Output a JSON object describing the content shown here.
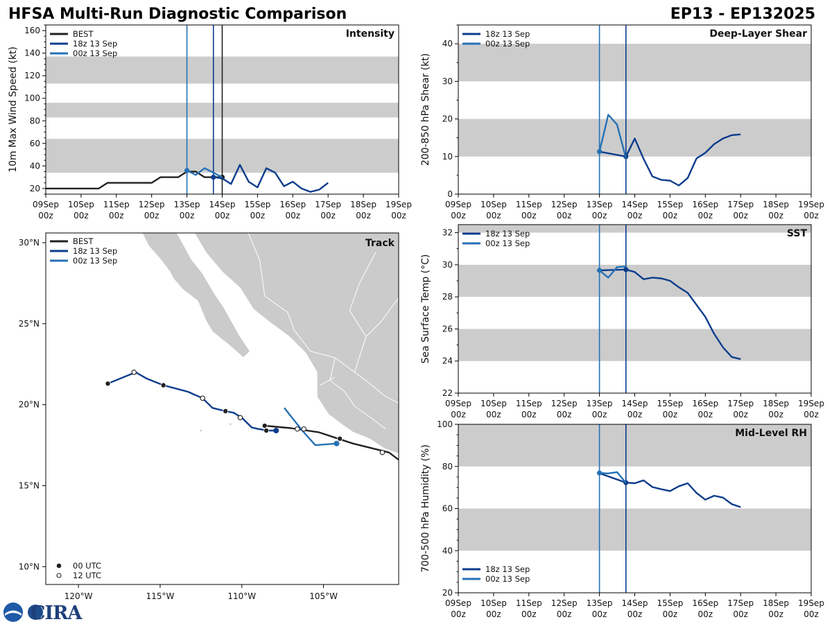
{
  "header": {
    "left_title": "HFSA Multi-Run Diagnostic Comparison",
    "right_title": "EP13 - EP132025"
  },
  "colors": {
    "best": "#222222",
    "run18z": "#0b3c8c",
    "run00z": "#2471b5",
    "band": "#cccccc",
    "land": "#cbcbcb"
  },
  "logo": {
    "text": "CIRA"
  },
  "time_axis": {
    "ticks": [
      0,
      24,
      48,
      72,
      96,
      120,
      144,
      168,
      192,
      216,
      240
    ],
    "day_labels": [
      "09Sep",
      "10Sep",
      "11Sep",
      "12Sep",
      "13Sep",
      "14Sep",
      "15Sep",
      "16Sep",
      "17Sep",
      "18Sep",
      "19Sep"
    ],
    "hour_label": "00z",
    "units": "hours since 09Sep 00z"
  },
  "chart_data": [
    {
      "id": "intensity",
      "type": "line",
      "title": "Intensity",
      "ylabel": "10m Max Wind Speed (kt)",
      "ylim": [
        15,
        165
      ],
      "xlim": [
        0,
        240
      ],
      "yticks": [
        20,
        40,
        60,
        80,
        100,
        120,
        140,
        160
      ],
      "bands": [
        [
          34,
          64
        ],
        [
          83,
          96
        ],
        [
          113,
          137
        ]
      ],
      "vlines": [
        {
          "x": 96,
          "series": "run00z"
        },
        {
          "x": 114,
          "series": "run18z"
        },
        {
          "x": 120,
          "series": "best"
        }
      ],
      "legend": [
        "BEST",
        "18z 13 Sep",
        "00z 13 Sep"
      ],
      "legend_position": "top-left",
      "series": [
        {
          "name": "BEST",
          "key": "best",
          "x": [
            0,
            6,
            12,
            18,
            24,
            30,
            36,
            42,
            48,
            54,
            60,
            66,
            72,
            78,
            84,
            90,
            96,
            102,
            108,
            114,
            120
          ],
          "y": [
            20,
            20,
            20,
            20,
            20,
            20,
            20,
            25,
            25,
            25,
            25,
            25,
            25,
            30,
            30,
            30,
            35,
            35,
            30,
            30,
            30
          ],
          "marker_end": true
        },
        {
          "name": "18z 13 Sep",
          "key": "run18z",
          "x": [
            114,
            120,
            126,
            132,
            138,
            144,
            150,
            156,
            162,
            168,
            174,
            180,
            186,
            192
          ],
          "y": [
            30,
            29,
            24,
            41,
            26,
            21,
            38,
            34,
            22,
            26,
            20,
            17,
            19,
            25
          ],
          "marker_start": true
        },
        {
          "name": "00z 13 Sep",
          "key": "run00z",
          "x": [
            96,
            102,
            108,
            114,
            120
          ],
          "y": [
            36,
            32,
            38,
            34,
            30
          ],
          "marker_start": true
        }
      ]
    },
    {
      "id": "shear",
      "type": "line",
      "title": "Deep-Layer Shear",
      "ylabel": "200-850 hPa Shear (kt)",
      "ylim": [
        0,
        45
      ],
      "xlim": [
        0,
        240
      ],
      "yticks": [
        0,
        10,
        20,
        30,
        40
      ],
      "bands": [
        [
          10,
          20
        ],
        [
          30,
          40
        ]
      ],
      "vlines": [
        {
          "x": 96,
          "series": "run00z"
        },
        {
          "x": 114,
          "series": "run18z"
        }
      ],
      "legend": [
        "18z 13 Sep",
        "00z 13 Sep"
      ],
      "legend_position": "top-left",
      "series": [
        {
          "name": "18z 13 Sep",
          "key": "run18z",
          "x": [
            96,
            114,
            120,
            126,
            132,
            138,
            144,
            150,
            156,
            162,
            168,
            174,
            180,
            186,
            192
          ],
          "y": [
            11.3,
            10,
            14.8,
            9.4,
            4.7,
            3.8,
            3.6,
            2.3,
            4.3,
            9.5,
            11,
            13.3,
            14.8,
            15.7,
            15.9
          ],
          "marker_index": 1
        },
        {
          "name": "00z 13 Sep",
          "key": "run00z",
          "x": [
            96,
            102,
            108,
            114
          ],
          "y": [
            11.3,
            21.1,
            18.5,
            9.6
          ],
          "marker_start": true
        }
      ]
    },
    {
      "id": "sst",
      "type": "line",
      "title": "SST",
      "ylabel": "Sea Surface Temp (°C)",
      "ylim": [
        22,
        32.5
      ],
      "xlim": [
        0,
        240
      ],
      "yticks": [
        22,
        24,
        26,
        28,
        30,
        32
      ],
      "bands": [
        [
          24,
          26
        ],
        [
          28,
          30
        ],
        [
          32,
          34
        ]
      ],
      "vlines": [
        {
          "x": 96,
          "series": "run00z"
        },
        {
          "x": 114,
          "series": "run18z"
        }
      ],
      "legend": [
        "18z 13 Sep",
        "00z 13 Sep"
      ],
      "legend_position": "top-left",
      "series": [
        {
          "name": "18z 13 Sep",
          "key": "run18z",
          "x": [
            96,
            114,
            120,
            126,
            132,
            138,
            144,
            150,
            156,
            162,
            168,
            174,
            180,
            186,
            192
          ],
          "y": [
            29.65,
            29.7,
            29.55,
            29.1,
            29.2,
            29.15,
            29.0,
            28.6,
            28.25,
            27.5,
            26.75,
            25.7,
            24.85,
            24.25,
            24.12
          ],
          "marker_index": 1
        },
        {
          "name": "00z 13 Sep",
          "key": "run00z",
          "x": [
            96,
            102,
            108,
            114
          ],
          "y": [
            29.65,
            29.2,
            29.85,
            29.9
          ],
          "marker_start": true
        }
      ]
    },
    {
      "id": "rh",
      "type": "line",
      "title": "Mid-Level RH",
      "ylabel": "700-500 hPa Humidity (%)",
      "ylim": [
        20,
        100
      ],
      "xlim": [
        0,
        240
      ],
      "yticks": [
        20,
        40,
        60,
        80,
        100
      ],
      "bands": [
        [
          40,
          60
        ],
        [
          80,
          100
        ]
      ],
      "vlines": [
        {
          "x": 96,
          "series": "run00z"
        },
        {
          "x": 114,
          "series": "run18z"
        }
      ],
      "legend": [
        "18z 13 Sep",
        "00z 13 Sep"
      ],
      "legend_position": "bottom-left",
      "series": [
        {
          "name": "18z 13 Sep",
          "key": "run18z",
          "x": [
            96,
            114,
            120,
            126,
            132,
            138,
            144,
            150,
            156,
            162,
            168,
            174,
            180,
            186,
            192
          ],
          "y": [
            76.8,
            72.3,
            72,
            73.4,
            70.2,
            69.2,
            68.3,
            70.6,
            72,
            67.4,
            64.2,
            66.1,
            65.2,
            62.1,
            60.7
          ],
          "marker_index": 1
        },
        {
          "name": "00z 13 Sep",
          "key": "run00z",
          "x": [
            96,
            102,
            108,
            114
          ],
          "y": [
            76.9,
            76.7,
            77.3,
            72.2
          ],
          "marker_start": true
        }
      ]
    },
    {
      "id": "track",
      "type": "scatter",
      "title": "Track",
      "xlim": [
        -122,
        -100.4
      ],
      "ylim": [
        8.9,
        30.6
      ],
      "xticks": [
        -120,
        -115,
        -110,
        -105
      ],
      "xtick_labels": [
        "120°W",
        "115°W",
        "110°W",
        "105°W"
      ],
      "yticks": [
        10,
        15,
        20,
        25,
        30
      ],
      "ytick_labels": [
        "10°N",
        "15°N",
        "20°N",
        "25°N",
        "30°N"
      ],
      "legend": [
        "BEST",
        "18z 13 Sep",
        "00z 13 Sep"
      ],
      "marker_legend": [
        "00 UTC",
        "12 UTC"
      ],
      "series": [
        {
          "name": "BEST",
          "key": "best",
          "lon": [
            -108.6,
            -107,
            -105.3,
            -104.1,
            -103.2,
            -102,
            -101,
            -100.4
          ],
          "lat": [
            18.7,
            18.55,
            18.3,
            17.9,
            17.6,
            17.3,
            17.05,
            16.6
          ],
          "points": [
            {
              "lon": -108.6,
              "lat": 18.7,
              "kind": "00"
            },
            {
              "lon": -104,
              "lat": 17.9,
              "kind": "00"
            },
            {
              "lon": -101.4,
              "lat": 17.05,
              "kind": "12"
            }
          ]
        },
        {
          "name": "18z 13 Sep",
          "key": "run18z",
          "lon": [
            -107.9,
            -108.4,
            -109.0,
            -109.4,
            -110,
            -110.5,
            -111,
            -111.8,
            -112.4,
            -113.3,
            -114.8,
            -115.8,
            -116.5,
            -118.2
          ],
          "lat": [
            18.4,
            18.4,
            18.5,
            18.6,
            19.2,
            19.5,
            19.6,
            19.8,
            20.4,
            20.8,
            21.2,
            21.6,
            22.0,
            21.3
          ],
          "points": [
            {
              "lon": -107.9,
              "lat": 18.4,
              "kind": "start"
            },
            {
              "lon": -108.5,
              "lat": 18.4,
              "kind": "00"
            },
            {
              "lon": -110.1,
              "lat": 19.2,
              "kind": "12"
            },
            {
              "lon": -111,
              "lat": 19.6,
              "kind": "00"
            },
            {
              "lon": -112.4,
              "lat": 20.4,
              "kind": "12"
            },
            {
              "lon": -114.8,
              "lat": 21.2,
              "kind": "00"
            },
            {
              "lon": -116.6,
              "lat": 22.0,
              "kind": "12"
            },
            {
              "lon": -118.2,
              "lat": 21.3,
              "kind": "00"
            }
          ]
        },
        {
          "name": "00z 13 Sep",
          "key": "run00z",
          "lon": [
            -104.2,
            -105.5,
            -106.3,
            -107.4
          ],
          "lat": [
            17.6,
            17.5,
            18.4,
            19.8
          ],
          "points": [
            {
              "lon": -104.2,
              "lat": 17.6,
              "kind": "start"
            },
            {
              "lon": -106.2,
              "lat": 18.5,
              "kind": "12"
            },
            {
              "lon": -106.6,
              "lat": 18.5,
              "kind": "12"
            }
          ]
        }
      ]
    }
  ]
}
